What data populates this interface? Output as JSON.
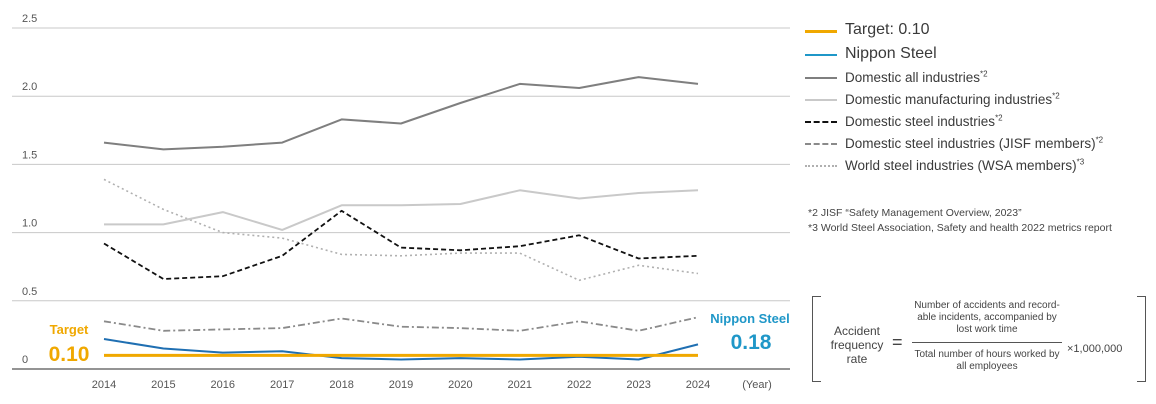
{
  "chart_data": {
    "type": "line",
    "x": [
      "2014",
      "2015",
      "2016",
      "2017",
      "2018",
      "2019",
      "2020",
      "2021",
      "2022",
      "2023",
      "2024"
    ],
    "xlabel": "(Year)",
    "yticks": [
      "2.5",
      "2.0",
      "1.5",
      "1.0",
      "0.5",
      "0"
    ],
    "ylim": [
      0,
      2.5
    ],
    "grid": true,
    "legend_position": "right",
    "series": [
      {
        "name": "Target: 0.10",
        "note": "",
        "color": "#f0a800",
        "dash": "solid",
        "width": 3,
        "values": [
          0.1,
          0.1,
          0.1,
          0.1,
          0.1,
          0.1,
          0.1,
          0.1,
          0.1,
          0.1,
          0.1
        ]
      },
      {
        "name": "Nippon Steel",
        "note": "",
        "color": "#1f6fb2",
        "dash": "solid",
        "width": 2,
        "values": [
          0.22,
          0.15,
          0.12,
          0.13,
          0.08,
          0.07,
          0.08,
          0.07,
          0.09,
          0.07,
          0.18
        ]
      },
      {
        "name": "Domestic all industries",
        "note": "*2",
        "color": "#7f7f7f",
        "dash": "solid",
        "width": 2,
        "values": [
          1.66,
          1.61,
          1.63,
          1.66,
          1.83,
          1.8,
          1.95,
          2.09,
          2.06,
          2.14,
          2.09
        ]
      },
      {
        "name": "Domestic manufacturing industries",
        "note": "*2",
        "color": "#c9c9c9",
        "dash": "solid",
        "width": 2,
        "values": [
          1.06,
          1.06,
          1.15,
          1.02,
          1.2,
          1.2,
          1.21,
          1.31,
          1.25,
          1.29,
          1.31
        ]
      },
      {
        "name": "Domestic steel industries",
        "note": "*2",
        "color": "#111111",
        "dash": "5,3",
        "width": 1.8,
        "values": [
          0.92,
          0.66,
          0.68,
          0.83,
          1.16,
          0.89,
          0.87,
          0.9,
          0.98,
          0.81,
          0.83
        ]
      },
      {
        "name": "Domestic steel industries (JISF members)",
        "note": "*2",
        "color": "#8a8a8a",
        "dash": "7,3,2,3",
        "width": 1.8,
        "values": [
          0.35,
          0.28,
          0.29,
          0.3,
          0.37,
          0.31,
          0.3,
          0.28,
          0.35,
          0.28,
          0.38
        ]
      },
      {
        "name": "World steel industries (WSA members)",
        "note": "*3",
        "color": "#b0b0b0",
        "dash": "2,3",
        "width": 1.6,
        "values": [
          1.39,
          1.17,
          1.0,
          0.96,
          0.84,
          0.83,
          0.85,
          0.85,
          0.65,
          0.76,
          0.7
        ]
      }
    ],
    "annotations": {
      "target_label": "Target",
      "target_value": "0.10",
      "nippon_label": "Nippon Steel",
      "nippon_value": "0.18"
    }
  },
  "notes": [
    "*2 JISF “Safety Management Overview, 2023”",
    "*3 World Steel Association, Safety and health 2022 metrics report"
  ],
  "formula": {
    "label": "Accident frequency rate",
    "equals": "=",
    "numerator": "Number of accidents and record-able incidents, accompanied by lost work time",
    "denominator": "Total number of hours worked by all employees",
    "multiplier": "×1,000,000"
  }
}
